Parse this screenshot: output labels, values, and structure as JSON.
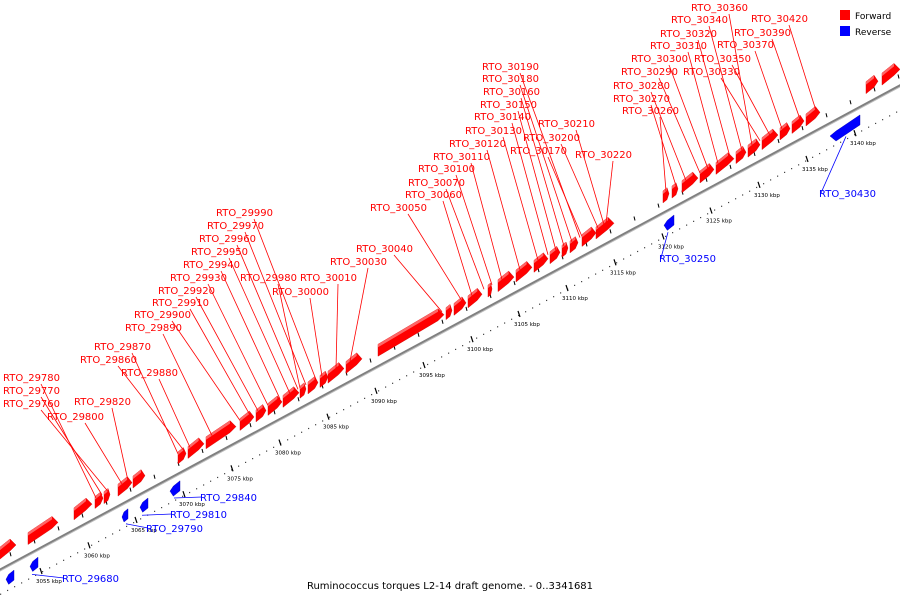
{
  "legend": {
    "forward_label": "Forward",
    "reverse_label": "Reverse",
    "forward_color": "#ff0000",
    "reverse_color": "#0000ff"
  },
  "caption": "Ruminococcus torques L2-14 draft genome. - 0..3341681",
  "colors": {
    "backbone": "#808080",
    "forward": "#ff0000",
    "reverse": "#0000ff",
    "tick": "#000000"
  },
  "ticks": [
    "3055 kbp",
    "3060 kbp",
    "3065 kbp",
    "3070 kbp",
    "3075 kbp",
    "3080 kbp",
    "3085 kbp",
    "3090 kbp",
    "3095 kbp",
    "3100 kbp",
    "3105 kbp",
    "3110 kbp",
    "3115 kbp",
    "3120 kbp",
    "3125 kbp",
    "3130 kbp",
    "3135 kbp",
    "3140 kbp"
  ],
  "forward_labels": [
    "RTO_29780",
    "RTO_29770",
    "RTO_29760",
    "RTO_29800",
    "RTO_29820",
    "RTO_29870",
    "RTO_29860",
    "RTO_29880",
    "RTO_29890",
    "RTO_29900",
    "RTO_29910",
    "RTO_29920",
    "RTO_29930",
    "RTO_29940",
    "RTO_29950",
    "RTO_29960",
    "RTO_29970",
    "RTO_29990",
    "RTO_29980",
    "RTO_30000",
    "RTO_30010",
    "RTO_30030",
    "RTO_30040",
    "RTO_30050",
    "RTO_30060",
    "RTO_30070",
    "RTO_30100",
    "RTO_30110",
    "RTO_30120",
    "RTO_30130",
    "RTO_30140",
    "RTO_30150",
    "RTO_30160",
    "RTO_30180",
    "RTO_30190",
    "RTO_30170",
    "RTO_30200",
    "RTO_30210",
    "RTO_30220",
    "RTO_30260",
    "RTO_30270",
    "RTO_30280",
    "RTO_30290",
    "RTO_30300",
    "RTO_30310",
    "RTO_30320",
    "RTO_30340",
    "RTO_30360",
    "RTO_30330",
    "RTO_30350",
    "RTO_30370",
    "RTO_30390",
    "RTO_30420"
  ],
  "reverse_labels": [
    "RTO_29680",
    "RTO_29790",
    "RTO_29810",
    "RTO_29840",
    "RTO_30250",
    "RTO_30430"
  ]
}
